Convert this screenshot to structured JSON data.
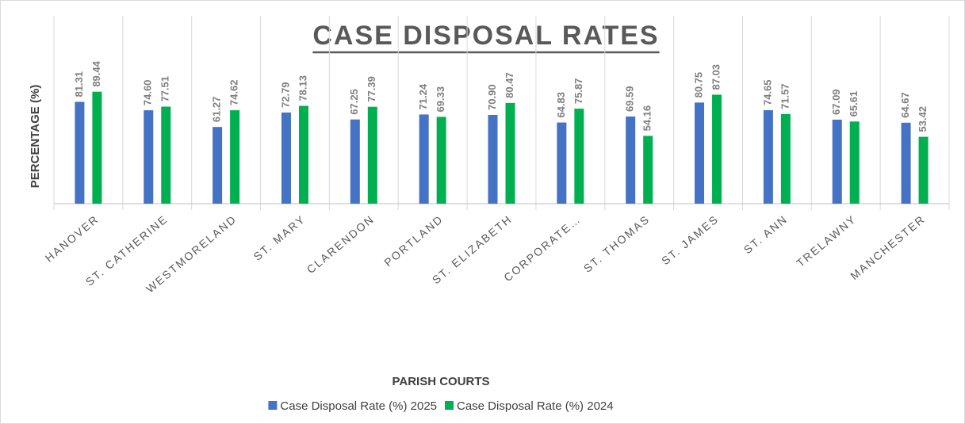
{
  "chart_data": {
    "type": "bar",
    "title": "CASE DISPOSAL RATES",
    "x_label": "PARISH COURTS",
    "y_label": "PERCENTAGE (%)",
    "categories": [
      "HANOVER",
      "ST. CATHERINE",
      "WESTMORELAND",
      "ST. MARY",
      "CLARENDON",
      "PORTLAND",
      "ST. ELIZABETH",
      "CORPORATE…",
      "ST. THOMAS",
      "ST. JAMES",
      "ST. ANN",
      "TRELAWNY",
      "MANCHESTER"
    ],
    "series": [
      {
        "name": "Case Disposal Rate (%) 2025",
        "color": "#4472c4",
        "values": [
          81.31,
          74.6,
          61.27,
          72.79,
          67.25,
          71.24,
          70.9,
          64.83,
          69.59,
          80.75,
          74.65,
          67.09,
          64.67
        ],
        "value_labels": [
          "81.31",
          "74.60",
          "61.27",
          "72.79",
          "67.25",
          "71.24",
          "70.90",
          "64.83",
          "69.59",
          "80.75",
          "74.65",
          "67.09",
          "64.67"
        ]
      },
      {
        "name": "Case Disposal Rate (%) 2024",
        "color": "#00b050",
        "values": [
          89.44,
          77.51,
          74.62,
          78.13,
          77.39,
          69.33,
          80.47,
          75.87,
          54.16,
          87.03,
          71.57,
          65.61,
          53.42
        ],
        "value_labels": [
          "89.44",
          "77.51",
          "74.62",
          "78.13",
          "77.39",
          "69.33",
          "80.47",
          "75.87",
          "54.16",
          "87.03",
          "71.57",
          "65.61",
          "53.42"
        ]
      }
    ],
    "ylim": [
      0,
      100
    ],
    "legend": "bottom"
  }
}
